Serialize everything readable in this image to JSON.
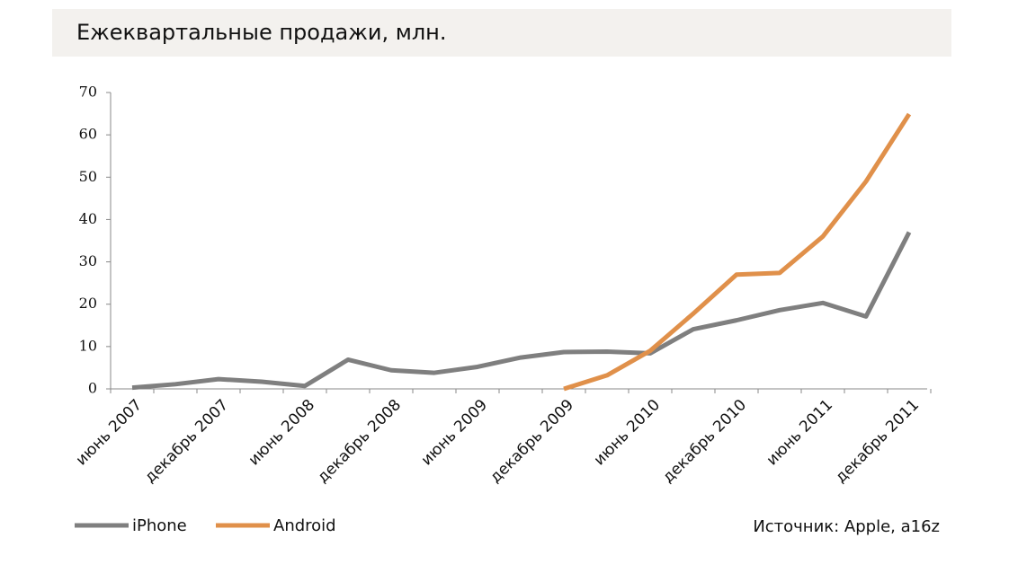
{
  "chart_data": {
    "type": "line",
    "title": "Ежеквартальные продажи, млн.",
    "source": "Источник: Apple, a16z",
    "categories": [
      "июнь 2007",
      null,
      "декабрь 2007",
      null,
      "июнь 2008",
      null,
      "декабрь 2008",
      null,
      "июнь 2009",
      null,
      "декабрь 2009",
      null,
      "июнь 2010",
      null,
      "декабрь 2010",
      null,
      "июнь 2011",
      null,
      "декабрь 2011"
    ],
    "series": [
      {
        "name": "iPhone",
        "color": "#7f7f7f",
        "values": [
          0.3,
          1.1,
          2.3,
          1.7,
          0.7,
          6.9,
          4.4,
          3.8,
          5.2,
          7.4,
          8.7,
          8.8,
          8.4,
          14.1,
          16.2,
          18.6,
          20.3,
          17.1,
          37.0
        ]
      },
      {
        "name": "Android",
        "color": "#e0904a",
        "values": [
          null,
          null,
          null,
          null,
          null,
          null,
          null,
          null,
          null,
          null,
          0,
          3.2,
          9.0,
          17.8,
          27.0,
          27.4,
          36.0,
          49.0,
          64.9
        ]
      }
    ],
    "ylim": [
      0,
      70
    ],
    "yticks": [
      0,
      10,
      20,
      30,
      40,
      50,
      60,
      70
    ],
    "legend": "bottom-left"
  }
}
